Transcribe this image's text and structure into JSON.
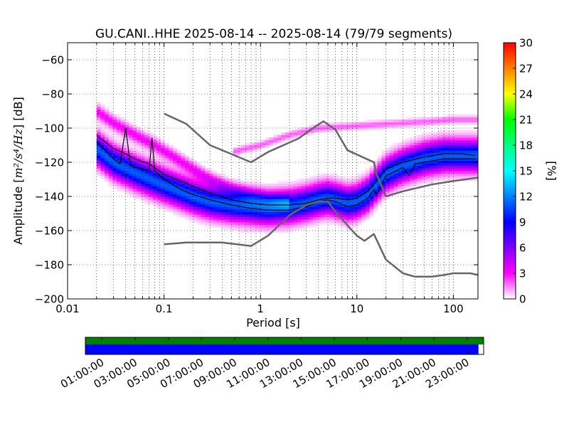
{
  "chart_data": {
    "type": "heatmap",
    "title": "GU.CANI..HHE   2025-08-14 -- 2025-08-14  (79/79 segments)",
    "xlabel": "Period [s]",
    "ylabel_prefix": "Amplitude [",
    "ylabel_unit": "m²/s⁴/Hz",
    "ylabel_suffix": "] [dB]",
    "x_scale": "log",
    "xlim": [
      0.01,
      180
    ],
    "ylim": [
      -200,
      -50
    ],
    "x_ticks": [
      0.01,
      0.1,
      1,
      10,
      100
    ],
    "x_tick_labels": [
      "0.01",
      "0.1",
      "1",
      "10",
      "100"
    ],
    "y_ticks": [
      -200,
      -180,
      -160,
      -140,
      -120,
      -100,
      -80,
      -60
    ],
    "y_tick_labels": [
      "−200",
      "−180",
      "−160",
      "−140",
      "−120",
      "−100",
      "−80",
      "−60"
    ],
    "grid": true,
    "colorbar": {
      "label": "[%]",
      "range": [
        0,
        30
      ],
      "ticks": [
        0,
        3,
        6,
        9,
        12,
        15,
        18,
        21,
        24,
        27,
        30
      ],
      "tick_labels": [
        "0",
        "3",
        "6",
        "9",
        "12",
        "15",
        "18",
        "21",
        "24",
        "27",
        "30"
      ],
      "colormap": [
        "#ffffff",
        "#ff00ff",
        "#8000ff",
        "#0000ff",
        "#0080ff",
        "#00ffff",
        "#00ff80",
        "#00ff00",
        "#ffff00",
        "#ff8000",
        "#ff0000"
      ]
    },
    "bands": [
      {
        "name": "main",
        "intensity": 7,
        "x": [
          0.02,
          0.03,
          0.05,
          0.08,
          0.12,
          0.2,
          0.3,
          0.5,
          0.8,
          1.2,
          2,
          3,
          4,
          5,
          6,
          8,
          10,
          13,
          16,
          20,
          30,
          50,
          80,
          120,
          170
        ],
        "y": [
          -112,
          -120,
          -126,
          -131,
          -135,
          -140,
          -143,
          -145,
          -146,
          -147,
          -146,
          -144,
          -142,
          -141,
          -142,
          -144,
          -143,
          -139,
          -133,
          -127,
          -122,
          -118,
          -116,
          -116,
          -116
        ],
        "half_width_db": 8
      },
      {
        "name": "upper-band",
        "intensity": 2,
        "x": [
          0.02,
          0.03,
          0.05,
          0.08,
          0.12,
          0.2,
          0.3,
          0.5,
          0.8,
          1.2,
          2
        ],
        "y": [
          -90,
          -97,
          -104,
          -110,
          -116,
          -124,
          -130,
          -136,
          -140,
          -142,
          -143
        ],
        "half_width_db": 4
      },
      {
        "name": "high-tail",
        "intensity": 1.2,
        "x": [
          0.5,
          1,
          2,
          4,
          8,
          15,
          30,
          60,
          100,
          170
        ],
        "y": [
          -114,
          -110,
          -104,
          -100,
          -99,
          -98,
          -97,
          -96,
          -95,
          -95
        ],
        "half_width_db": 2
      }
    ],
    "series": [
      {
        "role": "mean",
        "x": [
          0.02,
          0.03,
          0.04,
          0.05,
          0.07,
          0.1,
          0.15,
          0.2,
          0.3,
          0.5,
          0.8,
          1.2,
          2,
          3,
          4,
          5,
          6,
          8,
          10,
          13,
          16,
          20,
          30,
          50,
          80,
          120,
          170
        ],
        "y": [
          -104,
          -112,
          -115,
          -118,
          -121,
          -127,
          -131,
          -134,
          -138,
          -142,
          -144,
          -145,
          -145,
          -144,
          -142,
          -141,
          -141,
          -142,
          -141,
          -137,
          -131,
          -124,
          -120,
          -117,
          -115,
          -115,
          -116
        ]
      },
      {
        "role": "mode",
        "x": [
          0.02,
          0.03,
          0.035,
          0.04,
          0.045,
          0.05,
          0.06,
          0.07,
          0.075,
          0.08,
          0.1,
          0.15,
          0.2,
          0.3,
          0.5,
          0.8,
          1.2,
          2,
          3,
          4,
          5,
          6,
          8,
          10,
          13,
          15,
          16,
          20,
          30,
          35,
          40,
          50,
          80,
          120,
          170
        ],
        "y": [
          -108,
          -118,
          -121,
          -100,
          -122,
          -123,
          -124,
          -125,
          -106,
          -125,
          -130,
          -136,
          -139,
          -142,
          -145,
          -147,
          -148,
          -148,
          -146,
          -143,
          -142,
          -143,
          -146,
          -145,
          -141,
          -136,
          -139,
          -128,
          -123,
          -128,
          -121,
          -120,
          -118,
          -118,
          -118
        ]
      },
      {
        "role": "noise-model-high",
        "x": [
          0.1,
          0.17,
          0.3,
          0.8,
          1.2,
          2.5,
          3.5,
          4.5,
          6,
          8,
          15,
          16,
          20,
          30,
          60,
          100,
          180
        ],
        "y": [
          -91.5,
          -97.5,
          -110,
          -120,
          -114,
          -106,
          -100,
          -96,
          -101,
          -113,
          -120,
          -127,
          -140,
          -137,
          -133,
          -131,
          -129
        ]
      },
      {
        "role": "noise-model-low",
        "x": [
          0.1,
          0.17,
          0.4,
          0.8,
          1.2,
          2,
          3,
          4,
          5,
          6,
          8,
          10,
          12,
          15,
          20,
          30,
          40,
          60,
          80,
          100,
          150,
          180
        ],
        "y": [
          -168,
          -167,
          -167,
          -169,
          -163,
          -151,
          -145,
          -143,
          -143,
          -149,
          -157,
          -163,
          -166,
          -162,
          -177,
          -185,
          -187,
          -187,
          -186,
          -185,
          -185,
          -186
        ]
      }
    ]
  },
  "timeline": {
    "tick_labels": [
      "01:00:00",
      "03:00:00",
      "05:00:00",
      "07:00:00",
      "09:00:00",
      "11:00:00",
      "13:00:00",
      "15:00:00",
      "17:00:00",
      "19:00:00",
      "21:00:00",
      "23:00:00"
    ],
    "tick_hours": [
      1,
      3,
      5,
      7,
      9,
      11,
      13,
      15,
      17,
      19,
      21,
      23
    ],
    "data_color": "#008000",
    "used_color": "#0000ff",
    "data_coverage": [
      0,
      1
    ],
    "used_coverage": [
      0,
      0.987
    ]
  }
}
